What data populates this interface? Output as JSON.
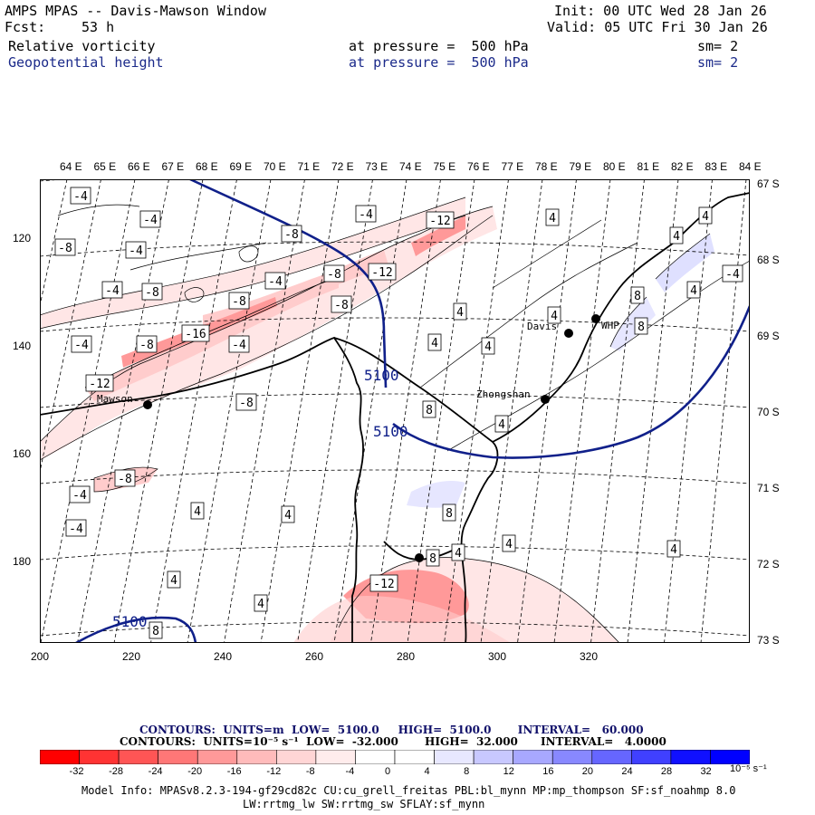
{
  "header": {
    "title": "AMPS MPAS -- Davis-Mawson Window",
    "init": "Init: 00 UTC Wed 28 Jan 26",
    "fcst_label": "Fcst:",
    "fcst_value": "53 h",
    "valid": "Valid: 05 UTC Fri 30 Jan 26"
  },
  "fields": [
    {
      "name": "Relative vorticity",
      "level": "at pressure =  500 hPa",
      "sm": "sm= 2",
      "color": "#000000"
    },
    {
      "name": "Geopotential height",
      "level": "at pressure =  500 hPa",
      "sm": "sm= 2",
      "color": "#1b2a8a"
    }
  ],
  "map": {
    "longitude_labels": [
      "64 E",
      "65 E",
      "66 E",
      "67 E",
      "68 E",
      "69 E",
      "70 E",
      "71 E",
      "72 E",
      "73 E",
      "74 E",
      "75 E",
      "76 E",
      "77 E",
      "78 E",
      "79 E",
      "80 E",
      "81 E",
      "82 E",
      "83 E",
      "84 E"
    ],
    "latitude_labels": [
      "67 S",
      "68 S",
      "69 S",
      "70 S",
      "71 S",
      "72 S",
      "73 S"
    ],
    "x_ticks": [
      "200",
      "220",
      "240",
      "260",
      "280",
      "300",
      "320"
    ],
    "y_ticks": [
      "120",
      "140",
      "160",
      "180"
    ],
    "stations": [
      {
        "name": "Mawson"
      },
      {
        "name": "Davis"
      },
      {
        "name": "WHP"
      },
      {
        "name": "Zhongshan"
      }
    ],
    "height_contour_labels": [
      "5100",
      "5100",
      "5100"
    ],
    "vorticity_labels": [
      "-4",
      "-8",
      "-12",
      "-16",
      "4",
      "8"
    ]
  },
  "contour_info": {
    "line1": "CONTOURS:  UNITS=m  LOW=  5100.0     HIGH=  5100.0       INTERVAL=   60.000",
    "line2": "CONTOURS:  UNITS=10⁻⁵ s⁻¹  LOW=  -32.000       HIGH=  32.000      INTERVAL=   4.0000"
  },
  "colorbar": {
    "ticks": [
      "-32",
      "-28",
      "-24",
      "-20",
      "-16",
      "-12",
      "-8",
      "-4",
      "0",
      "4",
      "8",
      "12",
      "16",
      "20",
      "24",
      "28",
      "32"
    ],
    "units": "10⁻⁵ s⁻¹",
    "colors": [
      "#ff0000",
      "#ff3333",
      "#ff5555",
      "#ff7777",
      "#ff9999",
      "#ffbbbb",
      "#ffd5d5",
      "#ffecec",
      "#ffffff",
      "#ffffff",
      "#e8e8ff",
      "#c8c8ff",
      "#a8a8ff",
      "#8888ff",
      "#6666ff",
      "#4040ff",
      "#1010ff",
      "#0000ff"
    ]
  },
  "model_info": {
    "line1": "Model Info: MPASv8.2.3-194-gf29cd82c CU:cu_grell_freitas PBL:bl_mynn MP:mp_thompson SF:sf_noahmp 8.0",
    "line2": "LW:rrtmg_lw SW:rrtmg_sw SFLAY:sf_mynn"
  }
}
